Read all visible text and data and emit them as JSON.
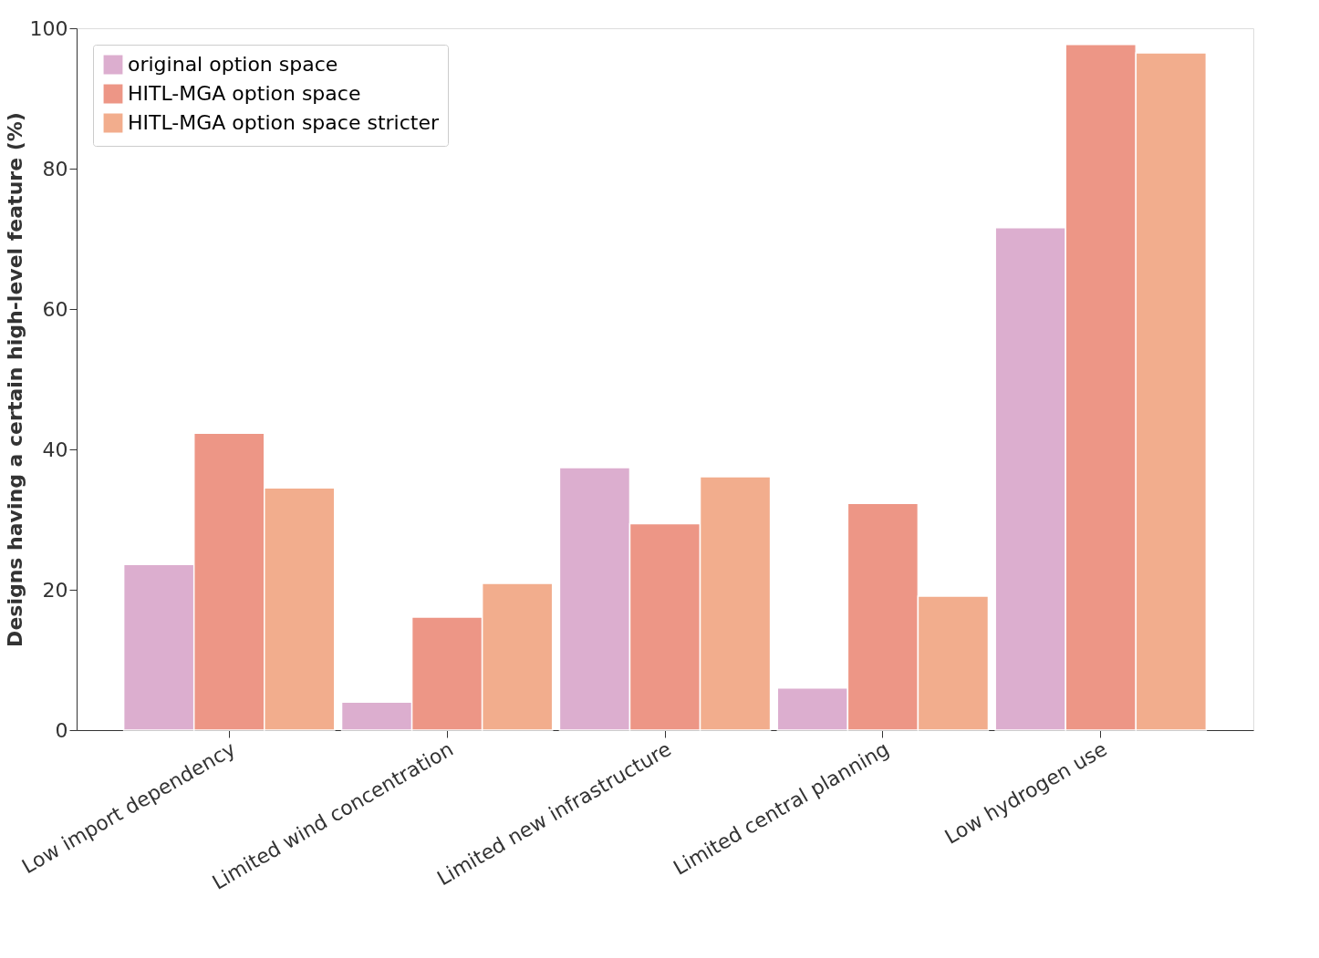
{
  "chart_data": {
    "type": "bar",
    "ylabel": "Designs having a certain high-level feature (%)",
    "categories": [
      "Low import dependency",
      "Limited wind concentration",
      "Limited new infrastructure",
      "Limited central planning",
      "Low hydrogen use"
    ],
    "series": [
      {
        "name": "original option space",
        "color": "#dcaecf",
        "values": [
          23.6,
          4.0,
          37.4,
          6.0,
          71.6
        ]
      },
      {
        "name": "HITL-MGA option space",
        "color": "#ed9686",
        "values": [
          42.3,
          16.1,
          29.4,
          32.3,
          97.7
        ]
      },
      {
        "name": "HITL-MGA option space stricter",
        "color": "#f2ad8d",
        "values": [
          34.5,
          20.9,
          36.1,
          19.1,
          96.5
        ]
      }
    ],
    "ylim": [
      0,
      100
    ],
    "yticks": [
      0,
      20,
      40,
      60,
      80,
      100
    ],
    "grid": false,
    "legend": "top left"
  }
}
